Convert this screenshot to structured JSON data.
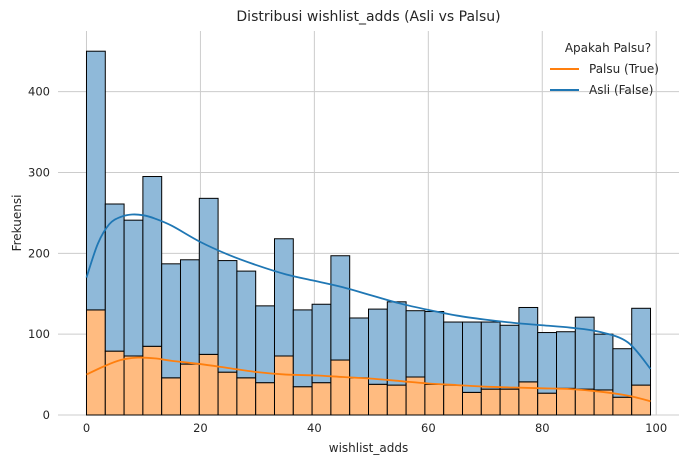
{
  "chart_data": {
    "type": "histogram",
    "title": "Distribusi wishlist_adds (Asli vs Palsu)",
    "xlabel": "wishlist_adds",
    "ylabel": "Frekuensi",
    "xlim": [
      -5.0,
      104.0
    ],
    "ylim": [
      0,
      475
    ],
    "xticks": [
      0,
      20,
      40,
      60,
      80,
      100
    ],
    "yticks": [
      0,
      100,
      200,
      300,
      400
    ],
    "grid": true,
    "stacked": true,
    "bin_width": 3.3,
    "bin_start": 0,
    "legend": {
      "title": "Apakah Palsu?",
      "position": "top-right",
      "entries": [
        {
          "label": "Palsu (True)",
          "color": "#ff7f0e"
        },
        {
          "label": "Asli (False)",
          "color": "#1f77b4"
        }
      ]
    },
    "series": [
      {
        "name": "Palsu (True)",
        "fill_color": "#ffbb80",
        "line_color": "#ff7f0e",
        "values": [
          130,
          79,
          73,
          85,
          46,
          63,
          75,
          53,
          46,
          40,
          73,
          35,
          40,
          68,
          46,
          38,
          37,
          47,
          38,
          37,
          28,
          32,
          32,
          41,
          27,
          33,
          32,
          31,
          22,
          37
        ]
      },
      {
        "name": "Asli (False)",
        "fill_color": "#8fb9d9",
        "line_color": "#1f77b4",
        "values": [
          320,
          182,
          168,
          210,
          141,
          129,
          193,
          138,
          132,
          95,
          145,
          95,
          97,
          129,
          74,
          93,
          103,
          82,
          90,
          78,
          87,
          83,
          79,
          92,
          75,
          70,
          89,
          69,
          60,
          95
        ]
      }
    ],
    "kde": [
      {
        "name": "Palsu (True)",
        "x": [
          0,
          3,
          6,
          9,
          12,
          15,
          20,
          25,
          30,
          35,
          40,
          45,
          50,
          55,
          60,
          65,
          70,
          75,
          80,
          85,
          90,
          95,
          99
        ],
        "y": [
          50,
          60,
          68,
          71,
          70,
          67,
          63,
          58,
          53,
          50,
          49,
          47,
          45,
          42,
          39,
          37,
          35,
          34,
          33,
          32,
          29,
          24,
          17
        ]
      },
      {
        "name": "Asli (False)",
        "x": [
          0,
          2,
          4,
          6,
          8,
          10,
          12,
          15,
          20,
          25,
          30,
          35,
          40,
          45,
          50,
          55,
          60,
          65,
          70,
          75,
          80,
          85,
          90,
          95,
          99
        ],
        "y": [
          170,
          212,
          236,
          245,
          248,
          247,
          243,
          234,
          214,
          198,
          185,
          174,
          166,
          158,
          148,
          138,
          130,
          123,
          118,
          114,
          111,
          108,
          103,
          90,
          57
        ]
      }
    ]
  }
}
